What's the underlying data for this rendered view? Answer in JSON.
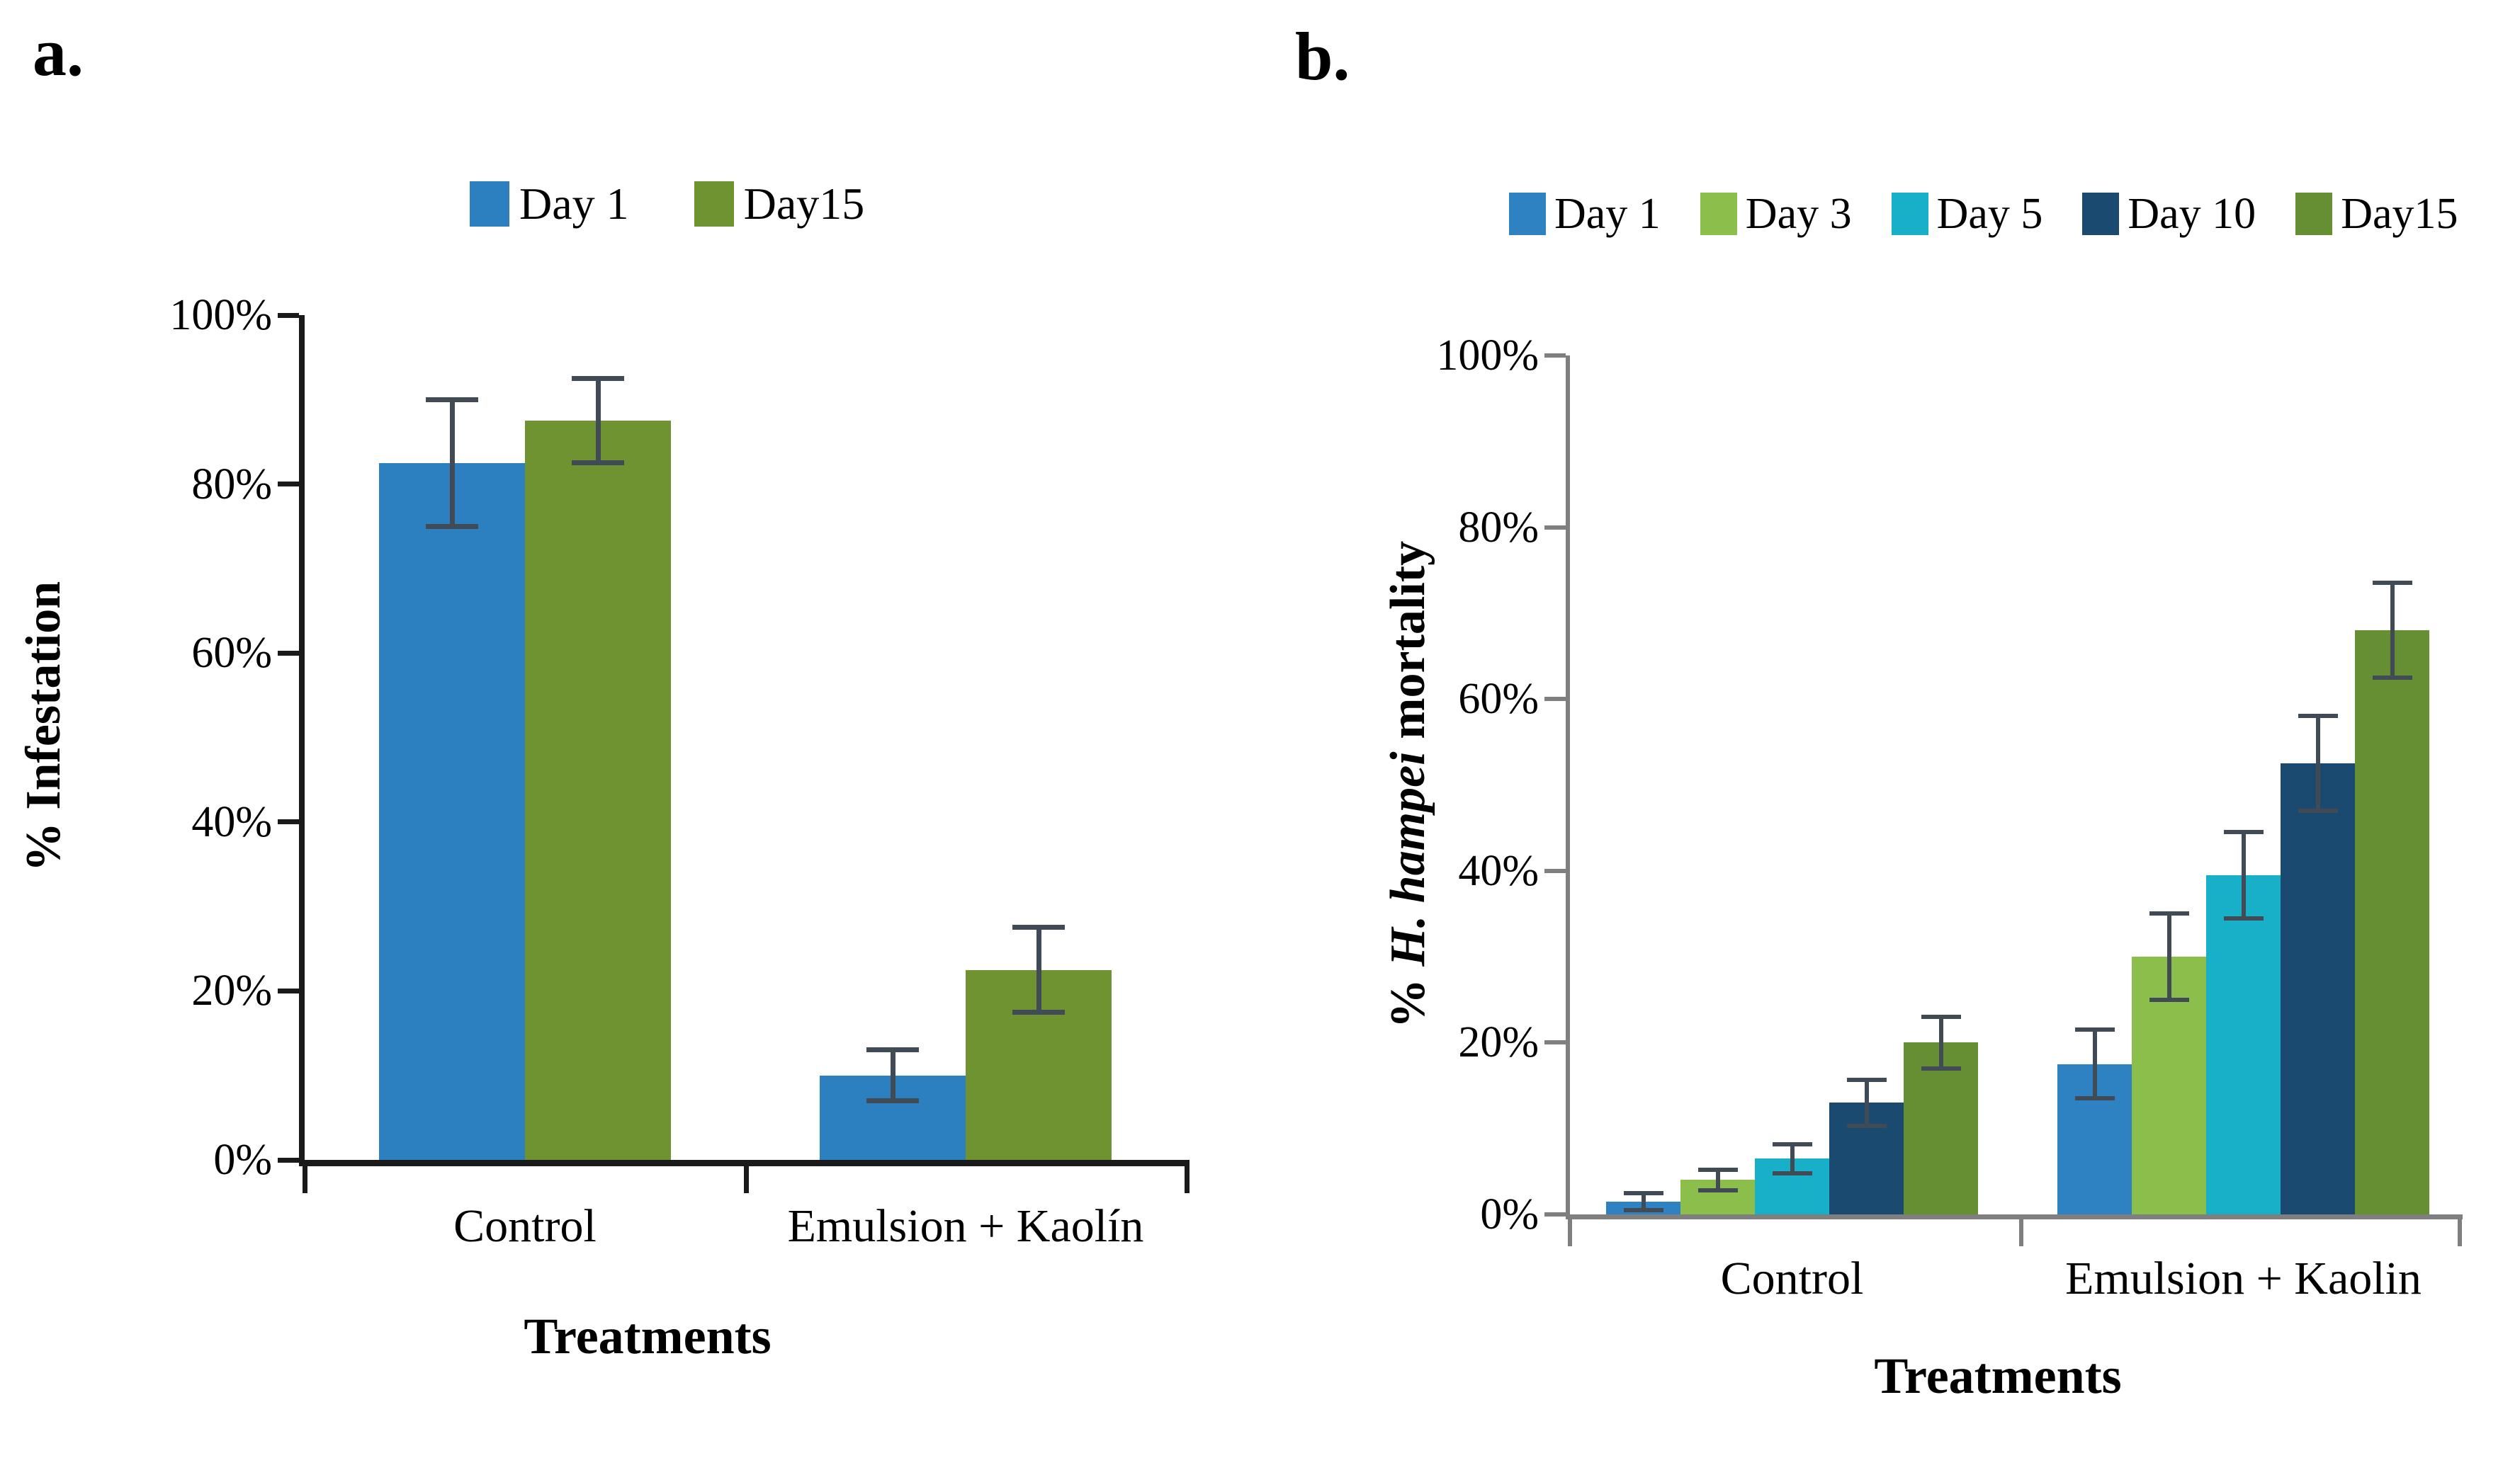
{
  "figure": {
    "background": "#ffffff",
    "error_bar_color": "#414B55"
  },
  "chart_data": [
    {
      "id": "a",
      "panel_label": "a.",
      "type": "bar",
      "title": "",
      "categories": [
        "Control",
        "Emulsion + Kaolín"
      ],
      "series": [
        {
          "name": "Day 1",
          "color": "#2D80BF",
          "values": [
            82.5,
            10
          ],
          "errors": [
            7.5,
            3
          ]
        },
        {
          "name": "Day15",
          "color": "#6F9331",
          "values": [
            87.5,
            22.5
          ],
          "errors": [
            5,
            5
          ]
        }
      ],
      "xlabel": "Treatments",
      "ylabel": "% Infestation",
      "ylabel_segments": [
        {
          "text": "% Infestation",
          "italic": false
        }
      ],
      "ylim": [
        0,
        100
      ],
      "ytick_step": 20,
      "ytick_labels": [
        "0%",
        "20%",
        "40%",
        "60%",
        "80%",
        "100%"
      ],
      "legend_position": "top",
      "grid": false,
      "axis_color": "#1A1A1A"
    },
    {
      "id": "b",
      "panel_label": "b.",
      "type": "bar",
      "title": "",
      "categories": [
        "Control",
        "Emulsion + Kaolin"
      ],
      "series": [
        {
          "name": "Day 1",
          "color": "#2E82C1",
          "values": [
            1.5,
            17.5
          ],
          "errors": [
            1,
            4
          ]
        },
        {
          "name": "Day 3",
          "color": "#8CBE4B",
          "values": [
            4,
            30
          ],
          "errors": [
            1.2,
            5
          ]
        },
        {
          "name": "Day 5",
          "color": "#18AFC9",
          "values": [
            6.5,
            39.5
          ],
          "errors": [
            1.7,
            5
          ]
        },
        {
          "name": "Day 10",
          "color": "#1B4A70",
          "values": [
            13,
            52.5
          ],
          "errors": [
            2.7,
            5.5
          ]
        },
        {
          "name": "Day15",
          "color": "#668F33",
          "values": [
            20,
            68
          ],
          "errors": [
            3,
            5.5
          ]
        }
      ],
      "xlabel": "Treatments",
      "ylabel": "% H. hampei mortality",
      "ylabel_segments": [
        {
          "text": "% ",
          "italic": false
        },
        {
          "text": "H. hampei",
          "italic": true
        },
        {
          "text": " mortality",
          "italic": false
        }
      ],
      "ylim": [
        0,
        100
      ],
      "ytick_step": 20,
      "ytick_labels": [
        "0%",
        "20%",
        "40%",
        "60%",
        "80%",
        "100%"
      ],
      "legend_position": "top",
      "grid": false,
      "axis_color": "#7F7F7F"
    }
  ]
}
